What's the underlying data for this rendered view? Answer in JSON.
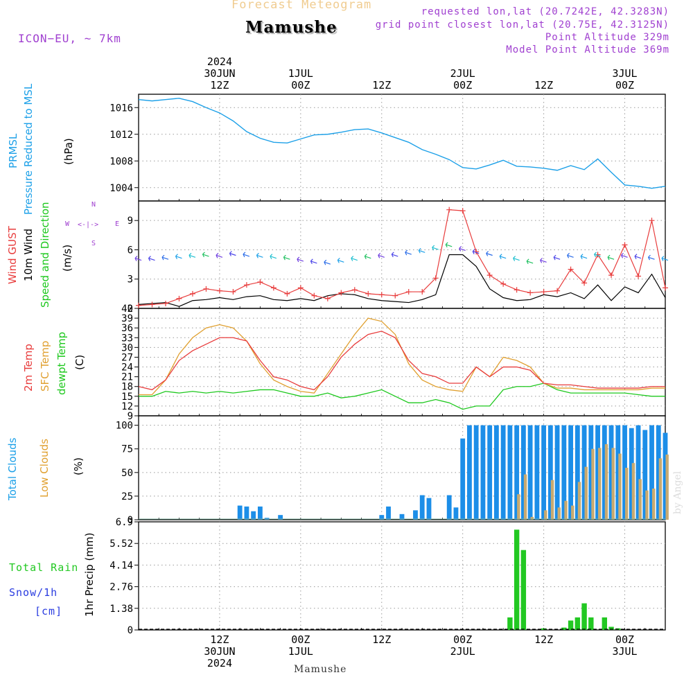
{
  "header": {
    "subtitle": "Forecast Meteogram",
    "place": "Mamushe",
    "model": "ICON−EU, ~ 7km",
    "info": [
      "requested lon,lat (20.7242E, 42.3283N)",
      "grid point closest lon,lat (20.75E, 42.3125N)",
      "Point Altitude 329m",
      "Model Point Altitude 369m"
    ],
    "watermark": "by Angel",
    "footer_place": "Mamushe"
  },
  "time_axis": {
    "hours_total": 78,
    "top_ticks": [
      {
        "hour": 12,
        "lines": [
          "2024",
          "30JUN",
          "12Z"
        ]
      },
      {
        "hour": 24,
        "lines": [
          "1JUL",
          "00Z"
        ]
      },
      {
        "hour": 36,
        "lines": [
          "12Z"
        ]
      },
      {
        "hour": 48,
        "lines": [
          "2JUL",
          "00Z"
        ]
      },
      {
        "hour": 60,
        "lines": [
          "12Z"
        ]
      },
      {
        "hour": 72,
        "lines": [
          "3JUL",
          "00Z"
        ]
      }
    ],
    "bottom_ticks": [
      {
        "hour": 12,
        "lines": [
          "12Z",
          "30JUN",
          "2024"
        ]
      },
      {
        "hour": 24,
        "lines": [
          "00Z",
          "1JUL"
        ]
      },
      {
        "hour": 36,
        "lines": [
          "12Z"
        ]
      },
      {
        "hour": 48,
        "lines": [
          "00Z",
          "2JUL"
        ]
      },
      {
        "hour": 60,
        "lines": [
          "12Z"
        ]
      },
      {
        "hour": 72,
        "lines": [
          "00Z",
          "3JUL"
        ]
      }
    ]
  },
  "panel_labels": {
    "pressure": {
      "title1": "PRMSL",
      "title2": "Pressure Reduced to MSL",
      "unit": "(hPa)"
    },
    "wind": {
      "gust": "Wind GUST",
      "wind10": "10m Wind",
      "dir": "Speed and Direction",
      "unit": "(m/s)",
      "compass_w": "W",
      "compass_e": "E",
      "compass_n": "N",
      "compass_s": "S"
    },
    "temp": {
      "t2m": "2m Temp",
      "sfc": "SFC Temp",
      "dew": "dewpt Temp",
      "unit": "(C)"
    },
    "clouds": {
      "total": "Total Clouds",
      "low": "Low Clouds",
      "unit": "(%)"
    },
    "precip": {
      "rain": "Total  Rain",
      "snow": "Snow/1h",
      "snow_unit": "[cm]",
      "unit": "1hr Precip (mm)"
    }
  },
  "colors": {
    "pressure": "#1ca0e8",
    "gust": "#e83c3c",
    "wind": "#000000",
    "t2m": "#e83c3c",
    "sfc": "#e0a030",
    "dew": "#1cc81c",
    "total_clouds": "#1c8ee8",
    "low_clouds": "#c8aa70",
    "rain": "#22c822",
    "label_blue": "#1ca0e8",
    "label_violet": "#a040d0",
    "label_blue2": "#2a3ce0"
  },
  "chart_data": [
    {
      "type": "line",
      "title": "PRMSL Pressure Reduced to MSL",
      "ylabel": "(hPa)",
      "ylim": [
        1002,
        1018
      ],
      "yticks": [
        1004,
        1008,
        1012,
        1016
      ],
      "x": [
        0,
        2,
        4,
        6,
        8,
        10,
        12,
        14,
        16,
        18,
        20,
        22,
        24,
        26,
        28,
        30,
        32,
        34,
        36,
        38,
        40,
        42,
        44,
        46,
        48,
        50,
        52,
        54,
        56,
        58,
        60,
        62,
        64,
        66,
        68,
        70,
        72,
        74,
        76,
        78
      ],
      "series": [
        {
          "name": "PRMSL",
          "values": [
            1017.2,
            1017,
            1017.2,
            1017.4,
            1016.9,
            1016,
            1015.2,
            1014,
            1012.4,
            1011.4,
            1010.8,
            1010.7,
            1011.3,
            1011.9,
            1012,
            1012.3,
            1012.7,
            1012.8,
            1012.2,
            1011.5,
            1010.8,
            1009.7,
            1009,
            1008.2,
            1007,
            1006.8,
            1007.4,
            1008.1,
            1007.2,
            1007.1,
            1006.9,
            1006.6,
            1007.3,
            1006.7,
            1008.3,
            1006.3,
            1004.4,
            1004.2,
            1003.9,
            1004.2
          ]
        }
      ]
    },
    {
      "type": "line",
      "title": "Wind GUST / 10m Wind Speed and Direction",
      "ylabel": "(m/s)",
      "ylim": [
        0,
        11
      ],
      "yticks": [
        0,
        3,
        6,
        9
      ],
      "x": [
        0,
        2,
        4,
        6,
        8,
        10,
        12,
        14,
        16,
        18,
        20,
        22,
        24,
        26,
        28,
        30,
        32,
        34,
        36,
        38,
        40,
        42,
        44,
        46,
        48,
        50,
        52,
        54,
        56,
        58,
        60,
        62,
        64,
        66,
        68,
        70,
        72,
        74,
        76,
        78
      ],
      "series": [
        {
          "name": "Wind GUST",
          "values": [
            0.3,
            0.4,
            0.5,
            1,
            1.5,
            2,
            1.8,
            1.7,
            2.4,
            2.7,
            2.1,
            1.5,
            2.1,
            1.3,
            1,
            1.6,
            1.9,
            1.5,
            1.4,
            1.3,
            1.7,
            1.7,
            3.1,
            10.1,
            10,
            5.8,
            3.4,
            2.5,
            1.9,
            1.6,
            1.7,
            1.8,
            4,
            2.6,
            5.5,
            3.4,
            6.5,
            3.3,
            9,
            2.1
          ]
        },
        {
          "name": "10m Wind",
          "values": [
            0.4,
            0.5,
            0.6,
            0.2,
            0.8,
            0.9,
            1.1,
            0.9,
            1.2,
            1.3,
            0.9,
            0.8,
            1,
            0.8,
            1.3,
            1.5,
            1.4,
            1,
            0.8,
            0.7,
            0.6,
            0.9,
            1.4,
            5.5,
            5.5,
            4.3,
            2,
            1.1,
            0.8,
            0.9,
            1.4,
            1.2,
            1.6,
            1,
            2.4,
            0.8,
            2.2,
            1.6,
            3.5,
            1.1
          ]
        },
        {
          "name": "Wind direction arrow speed",
          "values": [
            5.0,
            5.0,
            5.1,
            5.2,
            5.3,
            5.4,
            5.3,
            5.5,
            5.4,
            5.3,
            5.2,
            5.1,
            4.9,
            4.7,
            4.6,
            4.8,
            5.0,
            5.2,
            5.3,
            5.4,
            5.6,
            5.8,
            6.1,
            6.4,
            6.0,
            5.7,
            5.5,
            5.2,
            5.0,
            4.7,
            4.8,
            5.1,
            5.3,
            5.2,
            5.4,
            5.1,
            5.3,
            5.2,
            5.1,
            5.0
          ]
        }
      ]
    },
    {
      "type": "line",
      "title": "2m Temp / SFC Temp / dewpt Temp",
      "ylabel": "(C)",
      "ylim": [
        9,
        42
      ],
      "yticks": [
        9,
        12,
        15,
        18,
        21,
        24,
        27,
        30,
        33,
        36,
        39,
        42
      ],
      "x": [
        0,
        2,
        4,
        6,
        8,
        10,
        12,
        14,
        16,
        18,
        20,
        22,
        24,
        26,
        28,
        30,
        32,
        34,
        36,
        38,
        40,
        42,
        44,
        46,
        48,
        50,
        52,
        54,
        56,
        58,
        60,
        62,
        64,
        66,
        68,
        70,
        72,
        74,
        76,
        78
      ],
      "series": [
        {
          "name": "2m Temp",
          "values": [
            18,
            17,
            20,
            26,
            29,
            31,
            33,
            33,
            32,
            26,
            21,
            20,
            18,
            17,
            21,
            27,
            31,
            34,
            35,
            33,
            26,
            22,
            21,
            19,
            19,
            24,
            21,
            24,
            24,
            23,
            19,
            18.5,
            18.5,
            18,
            17.5,
            17.5,
            17.5,
            17.5,
            18,
            18
          ]
        },
        {
          "name": "SFC Temp",
          "values": [
            15.5,
            15.5,
            20,
            28,
            33,
            36,
            37,
            36,
            32,
            25,
            20,
            18,
            16.5,
            16,
            22,
            28,
            34,
            39,
            38,
            34,
            25,
            20,
            18,
            17,
            16.5,
            24,
            21,
            27,
            26,
            24,
            19,
            17.5,
            17.5,
            17,
            17,
            17,
            17,
            17,
            17.5,
            17.5
          ]
        },
        {
          "name": "dewpt Temp",
          "values": [
            15,
            15,
            16.5,
            16,
            16.5,
            16,
            16.5,
            16,
            16.5,
            17,
            17,
            16,
            15,
            15,
            16,
            14.5,
            15,
            16,
            17,
            15,
            13,
            13,
            14,
            13,
            11,
            12,
            12,
            17,
            18,
            18,
            19,
            17,
            16,
            16,
            16,
            16,
            16,
            15.5,
            15,
            15
          ]
        }
      ]
    },
    {
      "type": "bar",
      "title": "Total Clouds / Low Clouds",
      "ylabel": "(%)",
      "ylim": [
        0,
        110
      ],
      "yticks": [
        0,
        25,
        50,
        75,
        100
      ],
      "x": [
        0,
        1,
        2,
        3,
        4,
        5,
        6,
        7,
        8,
        9,
        10,
        11,
        12,
        13,
        14,
        15,
        16,
        17,
        18,
        19,
        20,
        21,
        22,
        23,
        24,
        25,
        26,
        27,
        28,
        29,
        30,
        31,
        32,
        33,
        34,
        35,
        36,
        37,
        38,
        39,
        40,
        41,
        42,
        43,
        44,
        45,
        46,
        47,
        48,
        49,
        50,
        51,
        52,
        53,
        54,
        55,
        56,
        57,
        58,
        59,
        60,
        61,
        62,
        63,
        64,
        65,
        66,
        67,
        68,
        69,
        70,
        71,
        72,
        73,
        74,
        75,
        76,
        77,
        78
      ],
      "series": [
        {
          "name": "Total Clouds",
          "values": [
            0,
            0,
            0,
            0,
            0,
            0,
            0,
            0,
            0,
            0,
            0,
            0,
            0,
            0,
            0,
            15,
            14,
            9,
            14,
            2,
            0,
            5,
            0,
            0,
            0,
            0,
            0,
            0,
            0,
            0,
            0,
            0,
            0,
            0,
            0,
            0,
            5,
            14,
            0,
            6,
            0,
            10,
            26,
            23,
            0,
            0,
            26,
            13,
            86,
            100,
            100,
            100,
            100,
            100,
            100,
            100,
            100,
            100,
            100,
            100,
            100,
            100,
            100,
            100,
            100,
            100,
            100,
            100,
            100,
            100,
            100,
            100,
            100,
            97,
            100,
            95,
            100,
            100,
            92
          ]
        },
        {
          "name": "Low Clouds",
          "values": [
            0,
            0,
            0,
            0,
            0,
            0,
            0,
            0,
            0,
            0,
            0,
            0,
            0,
            0,
            0,
            0,
            0,
            0,
            0,
            0,
            0,
            0,
            0,
            0,
            0,
            0,
            0,
            0,
            0,
            0,
            0,
            0,
            0,
            0,
            0,
            0,
            0,
            0,
            0,
            0,
            0,
            0,
            0,
            0,
            0,
            0,
            0,
            0,
            0,
            0,
            0,
            0,
            0,
            0,
            0,
            0,
            27,
            48,
            3,
            0,
            10,
            42,
            13,
            20,
            15,
            40,
            56,
            75,
            76,
            80,
            76,
            70,
            55,
            60,
            43,
            31,
            33,
            65,
            69
          ]
        }
      ]
    },
    {
      "type": "bar",
      "title": "1hr Precip",
      "ylabel": "1hr Precip (mm)",
      "ylim": [
        0,
        6.9
      ],
      "yticks": [
        0,
        1.38,
        2.76,
        4.14,
        5.52,
        6.9
      ],
      "x": [
        55,
        56,
        57,
        60,
        63,
        64,
        65,
        66,
        67,
        69,
        70,
        71
      ],
      "series": [
        {
          "name": "Total Rain",
          "values": [
            0.8,
            6.4,
            5.1,
            0.1,
            0.15,
            0.6,
            0.8,
            1.7,
            0.8,
            0.8,
            0.2,
            0.1
          ]
        }
      ]
    }
  ]
}
